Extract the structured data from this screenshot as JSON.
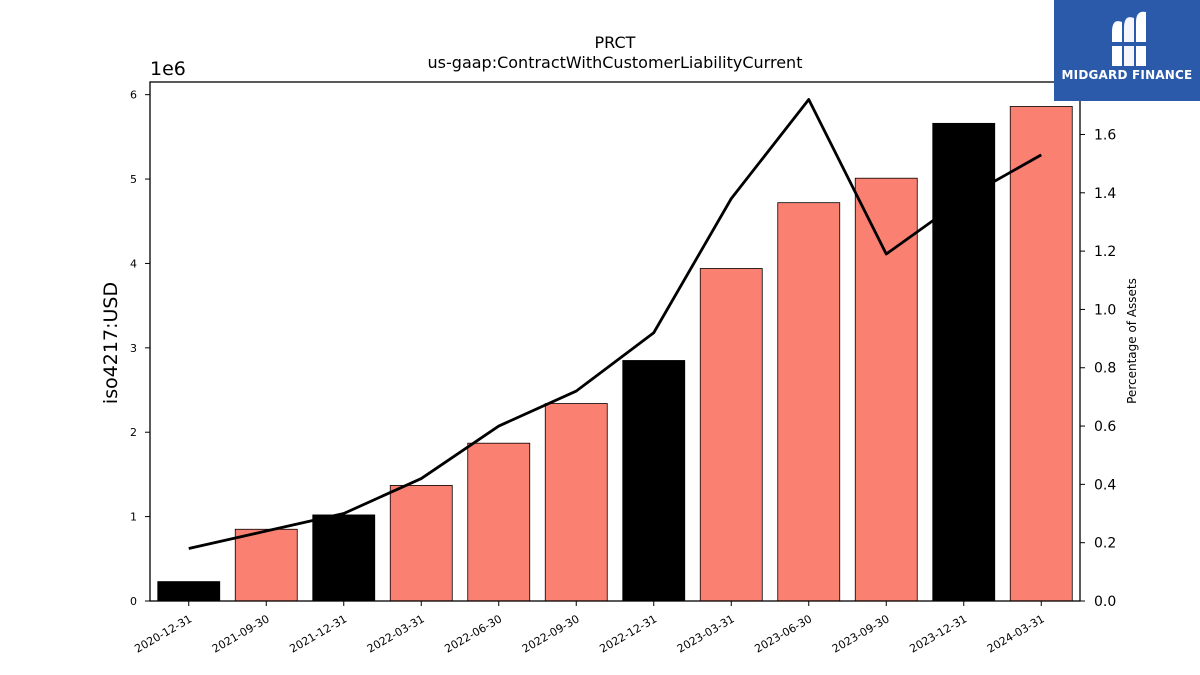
{
  "chart_data": {
    "type": "bar",
    "title": "PRCT",
    "subtitle": "us-gaap:ContractWithCustomerLiabilityCurrent",
    "ylabel": "iso4217:USD",
    "y_offset_label": "1e6",
    "y2label": "Percentage of Assets",
    "categories": [
      "2020-12-31",
      "2021-09-30",
      "2021-12-31",
      "2022-03-31",
      "2022-06-30",
      "2022-09-30",
      "2022-12-31",
      "2023-03-31",
      "2023-06-30",
      "2023-09-30",
      "2023-12-31",
      "2024-03-31"
    ],
    "series": [
      {
        "type": "bar",
        "values": [
          230000,
          850000,
          1020000,
          1370000,
          1870000,
          2340000,
          2850000,
          3940000,
          4720000,
          5010000,
          5660000,
          5860000
        ],
        "bar_colors": [
          "#000000",
          "#fa8072",
          "#000000",
          "#fa8072",
          "#fa8072",
          "#fa8072",
          "#000000",
          "#fa8072",
          "#fa8072",
          "#fa8072",
          "#000000",
          "#fa8072"
        ]
      },
      {
        "type": "line",
        "axis": "right",
        "values": [
          0.18,
          0.24,
          0.3,
          0.42,
          0.6,
          0.72,
          0.92,
          1.38,
          1.72,
          1.19,
          1.38,
          1.53
        ],
        "color": "#000000"
      }
    ],
    "ylim": [
      0,
      6150000
    ],
    "y_ticks": [
      0,
      1000000,
      2000000,
      3000000,
      4000000,
      5000000,
      6000000
    ],
    "y_tick_labels": [
      "0",
      "1",
      "2",
      "3",
      "4",
      "5",
      "6"
    ],
    "y2lim": [
      0,
      1.78
    ],
    "y2_ticks": [
      0,
      0.2,
      0.4,
      0.6,
      0.8,
      1.0,
      1.2,
      1.4,
      1.6
    ],
    "y2_tick_labels": [
      "0.0",
      "0.2",
      "0.4",
      "0.6",
      "0.8",
      "1.0",
      "1.2",
      "1.4",
      "1.6"
    ],
    "grid": false
  },
  "logo": {
    "text": "MIDGARD FINANCE",
    "icon": "midgard-logo-icon",
    "bg": "#2b5aab"
  }
}
